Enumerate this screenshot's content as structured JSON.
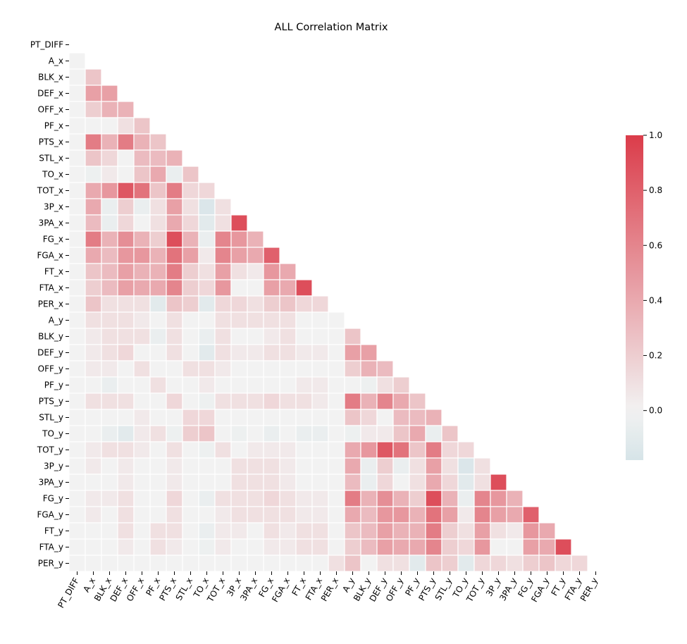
{
  "chart_data": {
    "type": "heatmap",
    "title": "ALL Correlation Matrix",
    "labels": [
      "PT_DIFF",
      "A_x",
      "BLK_x",
      "DEF_x",
      "OFF_x",
      "PF_x",
      "PTS_x",
      "STL_x",
      "TO_x",
      "TOT_x",
      "3P_x",
      "3PA_x",
      "FG_x",
      "FGA_x",
      "FT_x",
      "FTA_x",
      "PER_x",
      "A_y",
      "BLK_y",
      "DEF_y",
      "OFF_y",
      "PF_y",
      "PTS_y",
      "STL_y",
      "TO_y",
      "TOT_y",
      "3P_y",
      "3PA_y",
      "FG_y",
      "FGA_y",
      "FT_y",
      "FTA_y",
      "PER_y"
    ],
    "mask": "lower-triangle",
    "values": [
      [],
      [
        0.0
      ],
      [
        0.0,
        0.25
      ],
      [
        0.0,
        0.45,
        0.45
      ],
      [
        0.0,
        0.2,
        0.35,
        0.35
      ],
      [
        0.0,
        0.0,
        0.0,
        0.1,
        0.25
      ],
      [
        0.0,
        0.65,
        0.35,
        0.65,
        0.35,
        0.25
      ],
      [
        0.0,
        0.25,
        0.15,
        0.0,
        0.3,
        0.3,
        0.35
      ],
      [
        0.0,
        -0.03,
        0.05,
        0.0,
        0.25,
        0.4,
        -0.05,
        0.25
      ],
      [
        0.0,
        0.4,
        0.5,
        0.85,
        0.7,
        0.25,
        0.65,
        0.15,
        0.15
      ],
      [
        0.0,
        0.4,
        -0.05,
        0.2,
        -0.05,
        0.1,
        0.45,
        0.1,
        -0.15,
        0.1
      ],
      [
        0.0,
        0.3,
        -0.05,
        0.15,
        0.0,
        0.1,
        0.4,
        0.15,
        -0.1,
        0.1,
        0.9
      ],
      [
        0.0,
        0.65,
        0.35,
        0.55,
        0.35,
        0.2,
        0.9,
        0.35,
        -0.05,
        0.6,
        0.5,
        0.35
      ],
      [
        0.0,
        0.4,
        0.3,
        0.5,
        0.5,
        0.35,
        0.7,
        0.45,
        0.05,
        0.6,
        0.45,
        0.4,
        0.8
      ],
      [
        0.0,
        0.25,
        0.3,
        0.45,
        0.35,
        0.35,
        0.65,
        0.2,
        0.1,
        0.45,
        0.1,
        0.05,
        0.5,
        0.4
      ],
      [
        0.0,
        0.2,
        0.3,
        0.45,
        0.4,
        0.4,
        0.6,
        0.2,
        0.15,
        0.5,
        0.0,
        0.0,
        0.45,
        0.4,
        0.9
      ],
      [
        0.0,
        0.25,
        0.1,
        0.1,
        0.1,
        -0.1,
        0.25,
        0.2,
        -0.1,
        0.15,
        0.15,
        0.1,
        0.2,
        0.25,
        0.15,
        0.15
      ],
      [
        0.0,
        0.1,
        0.1,
        0.1,
        0.05,
        0.0,
        0.1,
        0.0,
        0.0,
        0.1,
        0.1,
        0.1,
        0.1,
        0.1,
        0.0,
        0.0,
        0.0
      ],
      [
        0.0,
        0.05,
        0.1,
        0.1,
        0.1,
        -0.05,
        0.1,
        0.0,
        -0.05,
        0.1,
        0.0,
        0.0,
        0.05,
        0.1,
        0.0,
        0.0,
        0.0,
        0.25
      ],
      [
        0.0,
        0.05,
        0.1,
        0.15,
        0.0,
        0.0,
        0.1,
        0.0,
        -0.1,
        0.1,
        0.05,
        0.05,
        0.1,
        0.1,
        0.05,
        0.05,
        0.0,
        0.45,
        0.45
      ],
      [
        0.0,
        0.05,
        0.05,
        0.0,
        0.1,
        0.0,
        0.0,
        0.1,
        0.1,
        0.05,
        0.0,
        0.0,
        0.0,
        0.0,
        0.0,
        0.0,
        0.0,
        0.2,
        0.35,
        0.3
      ],
      [
        0.0,
        0.0,
        -0.05,
        0.0,
        0.0,
        0.1,
        0.0,
        0.0,
        0.05,
        0.0,
        0.0,
        0.0,
        0.0,
        0.0,
        0.05,
        0.05,
        0.0,
        0.0,
        -0.03,
        0.1,
        0.2
      ],
      [
        0.0,
        0.1,
        0.1,
        0.1,
        0.0,
        0.0,
        0.15,
        0.0,
        -0.03,
        0.1,
        0.1,
        0.1,
        0.15,
        0.1,
        0.1,
        0.05,
        0.0,
        0.65,
        0.35,
        0.6,
        0.4,
        0.25
      ],
      [
        0.0,
        0.0,
        0.0,
        0.0,
        0.05,
        0.0,
        0.0,
        0.15,
        0.15,
        0.0,
        0.0,
        0.0,
        0.0,
        0.0,
        0.0,
        0.0,
        0.0,
        0.25,
        0.15,
        0.0,
        0.3,
        0.3,
        0.35
      ],
      [
        0.0,
        0.0,
        -0.05,
        -0.1,
        0.05,
        0.1,
        -0.03,
        0.2,
        0.25,
        0.0,
        -0.03,
        0.0,
        -0.05,
        0.0,
        -0.05,
        -0.05,
        0.0,
        -0.03,
        0.05,
        0.05,
        0.25,
        0.4,
        -0.05,
        0.25
      ],
      [
        0.0,
        0.05,
        0.1,
        0.1,
        0.05,
        0.0,
        0.1,
        0.0,
        -0.03,
        0.1,
        0.0,
        0.05,
        0.05,
        0.05,
        0.0,
        0.0,
        0.0,
        0.4,
        0.5,
        0.85,
        0.7,
        0.25,
        0.65,
        0.15,
        0.15
      ],
      [
        0.0,
        0.05,
        0.0,
        0.05,
        0.0,
        0.0,
        0.05,
        0.0,
        0.0,
        0.0,
        0.1,
        0.1,
        0.1,
        0.05,
        0.0,
        0.0,
        0.0,
        0.4,
        -0.05,
        0.2,
        -0.05,
        0.1,
        0.45,
        0.1,
        -0.15,
        0.1
      ],
      [
        0.0,
        0.0,
        0.0,
        0.05,
        0.0,
        0.0,
        0.05,
        0.0,
        0.0,
        0.0,
        0.1,
        0.1,
        0.1,
        0.05,
        0.0,
        0.0,
        0.0,
        0.3,
        -0.05,
        0.15,
        0.0,
        0.1,
        0.4,
        0.15,
        -0.1,
        0.1,
        0.9
      ],
      [
        0.0,
        0.05,
        0.05,
        0.1,
        0.0,
        0.0,
        0.15,
        0.0,
        -0.05,
        0.1,
        0.1,
        0.1,
        0.15,
        0.1,
        0.05,
        0.05,
        0.0,
        0.65,
        0.35,
        0.55,
        0.35,
        0.2,
        0.9,
        0.35,
        -0.05,
        0.6,
        0.5,
        0.35
      ],
      [
        0.0,
        0.05,
        0.0,
        0.1,
        0.0,
        0.0,
        0.1,
        0.0,
        0.0,
        0.05,
        0.1,
        0.1,
        0.1,
        0.1,
        0.05,
        0.05,
        0.0,
        0.4,
        0.3,
        0.5,
        0.5,
        0.35,
        0.7,
        0.45,
        0.05,
        0.6,
        0.45,
        0.4,
        0.8
      ],
      [
        0.0,
        0.0,
        0.0,
        0.1,
        0.0,
        0.1,
        0.1,
        0.0,
        -0.05,
        0.05,
        0.05,
        0.0,
        0.1,
        0.05,
        0.1,
        0.1,
        0.0,
        0.25,
        0.3,
        0.45,
        0.35,
        0.35,
        0.65,
        0.2,
        0.1,
        0.45,
        0.1,
        0.05,
        0.5,
        0.4
      ],
      [
        0.0,
        0.0,
        0.0,
        0.05,
        0.0,
        0.1,
        0.05,
        0.0,
        -0.03,
        0.05,
        0.0,
        0.0,
        0.05,
        0.05,
        0.1,
        0.1,
        0.0,
        0.2,
        0.3,
        0.45,
        0.4,
        0.4,
        0.6,
        0.2,
        0.15,
        0.5,
        0.0,
        0.0,
        0.45,
        0.4,
        0.9
      ],
      [
        0.0,
        0.0,
        0.0,
        0.0,
        0.0,
        0.0,
        0.0,
        0.0,
        0.0,
        0.0,
        0.0,
        0.0,
        0.0,
        0.0,
        0.0,
        0.0,
        0.1,
        0.25,
        0.0,
        0.1,
        0.1,
        -0.1,
        0.25,
        0.2,
        -0.1,
        0.15,
        0.15,
        0.1,
        0.2,
        0.25,
        0.15,
        0.15
      ]
    ],
    "colorbar": {
      "min": -0.18,
      "max": 1.0,
      "ticks": [
        0.0,
        0.2,
        0.4,
        0.6,
        0.8,
        1.0
      ],
      "tick_labels": [
        "0.0",
        "0.2",
        "0.4",
        "0.6",
        "0.8",
        "1.0"
      ]
    },
    "colors": {
      "negative": "#d6e4e8",
      "center": "#f2f2f2",
      "positive": "#db3c4a"
    }
  }
}
